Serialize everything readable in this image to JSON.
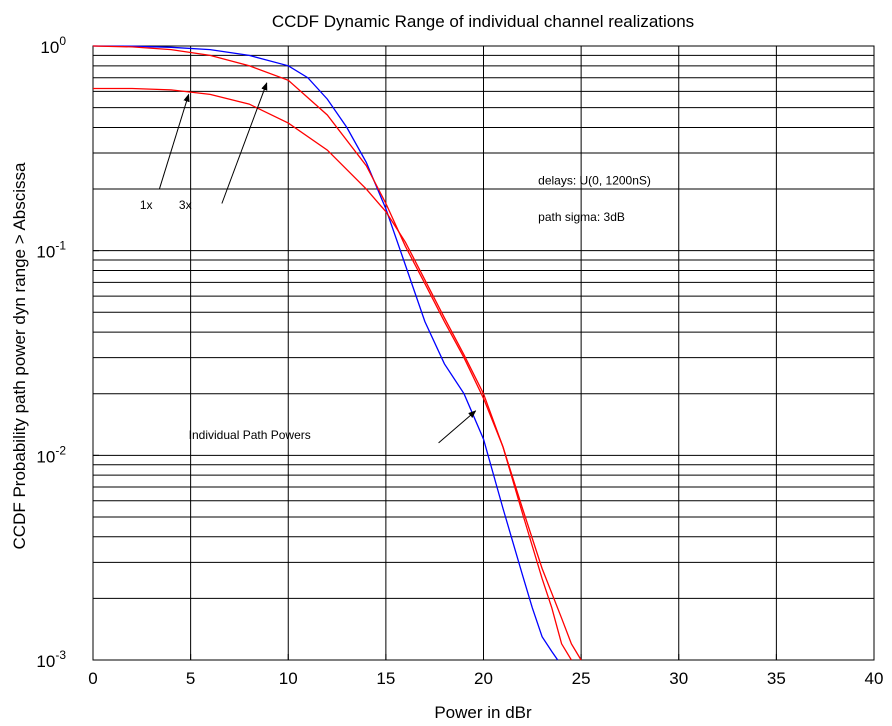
{
  "chart_data": {
    "type": "line",
    "title": "CCDF Dynamic Range of individual channel realizations",
    "xlabel": "Power in dBr",
    "ylabel": "CCDF Probability path power dyn range > Abscissa",
    "xlim": [
      0,
      40
    ],
    "ylim": [
      0.001,
      1
    ],
    "yscale": "log",
    "grid": true,
    "x_ticks": [
      0,
      5,
      10,
      15,
      20,
      25,
      30,
      35,
      40
    ],
    "x_tick_labels": [
      "0",
      "5",
      "10",
      "15",
      "20",
      "25",
      "30",
      "35",
      "40"
    ],
    "y_ticks": [
      {
        "value": 1,
        "base": "10",
        "exp": "0"
      },
      {
        "value": 0.1,
        "base": "10",
        "exp": "-1"
      },
      {
        "value": 0.01,
        "base": "10",
        "exp": "-2"
      },
      {
        "value": 0.001,
        "base": "10",
        "exp": "-3"
      }
    ],
    "series": [
      {
        "color": "#0000ff",
        "x": [
          0,
          2,
          4,
          6,
          8,
          10,
          11,
          12,
          13,
          14,
          15,
          16,
          17,
          18,
          19,
          20,
          21,
          22,
          22.5,
          23,
          23.5,
          23.8
        ],
        "y": [
          1,
          0.998,
          0.985,
          0.96,
          0.9,
          0.8,
          0.7,
          0.55,
          0.4,
          0.27,
          0.16,
          0.085,
          0.045,
          0.028,
          0.02,
          0.012,
          0.0055,
          0.0026,
          0.0018,
          0.0013,
          0.0011,
          0.001
        ]
      },
      {
        "color": "#ff0000",
        "x": [
          0,
          2,
          4,
          6,
          8,
          10,
          12,
          14,
          15,
          16,
          17,
          18,
          19,
          20,
          21,
          22,
          23,
          23.5,
          24,
          24.5
        ],
        "y": [
          1,
          0.99,
          0.96,
          0.9,
          0.8,
          0.68,
          0.46,
          0.26,
          0.17,
          0.105,
          0.069,
          0.045,
          0.03,
          0.019,
          0.011,
          0.0052,
          0.0025,
          0.0018,
          0.0012,
          0.001
        ]
      },
      {
        "color": "#ff0000",
        "x": [
          0,
          2,
          4,
          6,
          8,
          10,
          12,
          14,
          15,
          16,
          17,
          18,
          19,
          20,
          21,
          22,
          23,
          24,
          24.5,
          25
        ],
        "y": [
          0.62,
          0.62,
          0.61,
          0.58,
          0.52,
          0.42,
          0.31,
          0.2,
          0.155,
          0.11,
          0.072,
          0.047,
          0.031,
          0.02,
          0.011,
          0.0055,
          0.0028,
          0.0016,
          0.0012,
          0.001
        ]
      }
    ],
    "annotations": [
      {
        "text": "1x",
        "x": 2.4,
        "y": 0.16
      },
      {
        "text": "3x",
        "x": 4.4,
        "y": 0.16
      },
      {
        "text": "delays:  U(0, 1200nS)",
        "x": 22.8,
        "y": 0.21
      },
      {
        "text": "path sigma:  3dB",
        "x": 22.8,
        "y": 0.14
      },
      {
        "text": "Individual Path Powers",
        "x": 4.9,
        "y": 0.012
      }
    ],
    "arrows": [
      {
        "from": [
          3.4,
          0.2
        ],
        "to": [
          4.9,
          0.58
        ]
      },
      {
        "from": [
          6.6,
          0.17
        ],
        "to": [
          8.9,
          0.66
        ]
      },
      {
        "from": [
          17.7,
          0.0115
        ],
        "to": [
          19.6,
          0.0165
        ]
      }
    ]
  }
}
